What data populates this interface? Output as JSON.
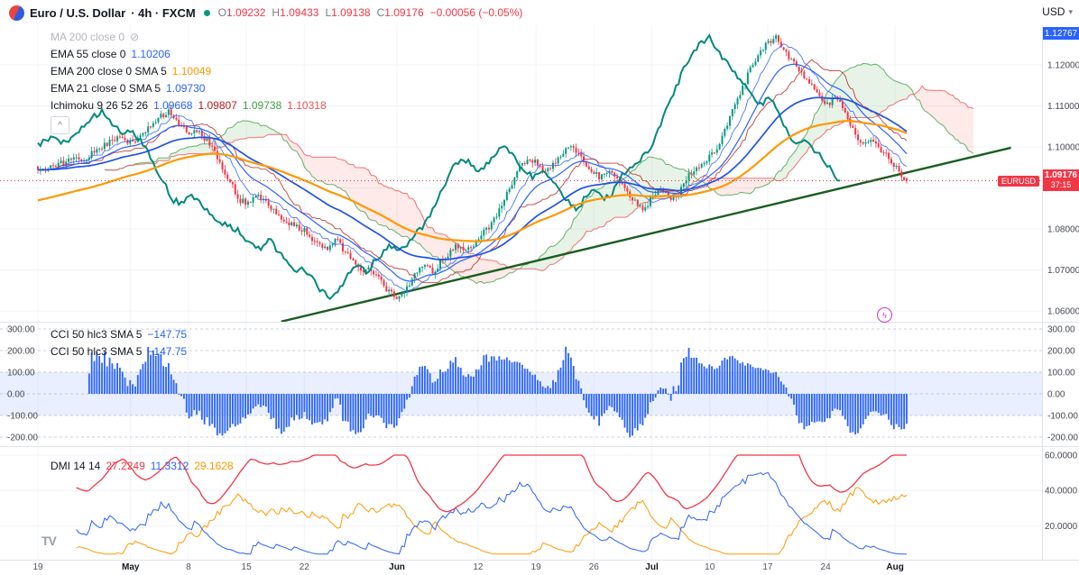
{
  "header": {
    "title": "Euro / U.S. Dollar",
    "meta": "· 4h · FXCM",
    "ohlc": [
      {
        "k": "O",
        "v": "1.09232"
      },
      {
        "k": "H",
        "v": "1.09433"
      },
      {
        "k": "L",
        "v": "1.09138"
      },
      {
        "k": "C",
        "v": "1.09176"
      }
    ],
    "change": "−0.00056 (−0.05%)",
    "currency": "USD"
  },
  "legend": {
    "ma200": {
      "label": "MA 200 close 0",
      "hidden": true
    },
    "ema55": {
      "label": "EMA 55 close 0",
      "value": "1.10206"
    },
    "ema200": {
      "label": "EMA 200 close 0 SMA 5",
      "value": "1.10049"
    },
    "ema21": {
      "label": "EMA 21 close 0 SMA 5",
      "value": "1.09730"
    },
    "ichimoku": {
      "label": "Ichimoku 9 26 52 26",
      "values": [
        "1.09668",
        "1.09807",
        "1.09738",
        "1.10318"
      ]
    }
  },
  "cci_panel": {
    "label": "CCI 50 hlc3 SMA 5",
    "value": "−147.75",
    "rows": 2,
    "scale": [
      "300.00",
      "200.00",
      "100.00",
      "0.00",
      "-100.00",
      "-200.00"
    ]
  },
  "dmi_panel": {
    "label": "DMI 14 14",
    "values": [
      "27.2249",
      "11.3312",
      "29.1628"
    ],
    "scale": [
      "60.0000",
      "40.0000",
      "20.0000"
    ]
  },
  "price_axis": {
    "labels": [
      "1.12000",
      "1.11000",
      "1.10000",
      "1.08000",
      "1.07000",
      "1.06000"
    ],
    "high_marker": "1.12767",
    "price_tag": {
      "symbol": "EURUSD",
      "price": "1.09176",
      "countdown": "37:15"
    }
  },
  "time_axis": [
    {
      "label": "19",
      "day": 0
    },
    {
      "label": "May",
      "day": 8
    },
    {
      "label": "8",
      "day": 13
    },
    {
      "label": "15",
      "day": 18
    },
    {
      "label": "22",
      "day": 23
    },
    {
      "label": "Jun",
      "day": 31
    },
    {
      "label": "12",
      "day": 38
    },
    {
      "label": "19",
      "day": 43
    },
    {
      "label": "26",
      "day": 48
    },
    {
      "label": "Jul",
      "day": 53
    },
    {
      "label": "10",
      "day": 58
    },
    {
      "label": "17",
      "day": 63
    },
    {
      "label": "24",
      "day": 68
    },
    {
      "label": "Aug",
      "day": 74
    }
  ],
  "icons": {
    "currency_caret": "▾",
    "collapse": "^",
    "eye_off": "⊘",
    "magic": "ϟ",
    "tv": "TV"
  },
  "colors": {
    "up": "#089981",
    "down": "#f23645",
    "blue": "#2962ff",
    "blue2": "#1e53e5",
    "orange": "#ff9800",
    "teal": "#00897b",
    "conv": "#2962ff",
    "base": "#b71c1c",
    "spanA": "#43a047",
    "spanB": "#ef5350",
    "cloud_green": "rgba(67,160,71,0.13)",
    "cloud_red": "rgba(244,67,54,0.11)",
    "trend": "#1b5e20",
    "grid": "#f0f3fa",
    "axis_text": "#44484f",
    "band": "rgba(41,98,255,0.10)",
    "bar": "#2962ff",
    "adx": "#f23645",
    "pdi": "#2962ff",
    "mdi": "#ff9800"
  },
  "chart_data": {
    "type": "candlestick",
    "symbol": "EURUSD",
    "timeframe": "4h",
    "exchange": "FXCM",
    "ohlc_current": {
      "open": 1.09232,
      "high": 1.09433,
      "low": 1.09138,
      "close": 1.09176,
      "change": -0.00056,
      "change_pct": -0.05
    },
    "high": 1.12767,
    "low": 1.0622,
    "y_range": [
      1.055,
      1.13
    ],
    "days_span": 75,
    "close_anchors": [
      1.0952,
      1.0945,
      1.0958,
      1.0962,
      1.0975,
      1.0968,
      1.0982,
      1.0996,
      1.101,
      1.1024,
      1.1015,
      1.1008,
      1.103,
      1.1055,
      1.1075,
      1.1088,
      1.106,
      1.1032,
      1.1045,
      1.102,
      1.0995,
      1.095,
      1.0912,
      1.0872,
      1.0858,
      1.088,
      1.0862,
      1.0838,
      1.082,
      1.0812,
      1.0802,
      1.0782,
      1.0768,
      1.0752,
      1.0772,
      1.0745,
      1.072,
      1.0698,
      1.0705,
      1.0672,
      1.0645,
      1.0628,
      1.0658,
      1.0692,
      1.0712,
      1.0695,
      1.0722,
      1.0745,
      1.0762,
      1.0748,
      1.0772,
      1.0795,
      1.0825,
      1.0865,
      1.091,
      1.0952,
      1.0975,
      1.0958,
      1.0938,
      1.0962,
      1.0988,
      1.1002,
      1.0972,
      1.0942,
      1.0925,
      1.0948,
      1.0925,
      1.0898,
      1.0865,
      1.0842,
      1.0878,
      1.0898,
      1.0872,
      1.0888,
      1.0925,
      1.0955,
      1.0962,
      1.0985,
      1.1025,
      1.1078,
      1.113,
      1.118,
      1.1225,
      1.1252,
      1.1268,
      1.1232,
      1.1205,
      1.118,
      1.1155,
      1.1128,
      1.1102,
      1.1125,
      1.1082,
      1.1038,
      1.1002,
      1.1018,
      1.0988,
      1.0972,
      1.0945,
      1.0918
    ],
    "trendline": {
      "d1": 21,
      "p1": 1.0574,
      "d2": 84,
      "p2": 1.0998
    },
    "price_gridlines": [
      1.12,
      1.11,
      1.1,
      1.09,
      1.08,
      1.07,
      1.06
    ],
    "indicators": {
      "ema21_last": 1.0973,
      "ema55_last": 1.10206,
      "ema200sma5_last": 1.10049,
      "ichimoku_last": [
        1.09668,
        1.09807,
        1.09738,
        1.10318
      ],
      "cci_last": -147.75,
      "dmi_last": [
        27.2249,
        11.3312,
        29.1628
      ]
    },
    "cci_scale": [
      300,
      200,
      100,
      0,
      -100,
      -200
    ],
    "dmi_scale": [
      60,
      40,
      20
    ]
  }
}
